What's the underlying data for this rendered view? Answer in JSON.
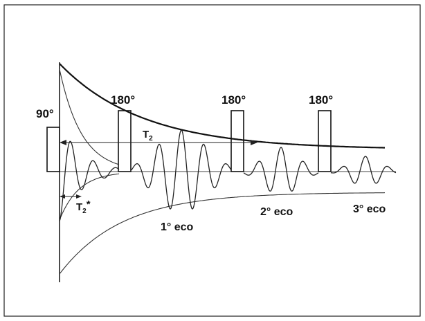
{
  "pulses": {
    "p90": "90°",
    "p180_1": "180°",
    "p180_2": "180°",
    "p180_3": "180°"
  },
  "labels": {
    "t2": "T",
    "t2_sub": "2",
    "t2star": "T",
    "t2star_sub": "2",
    "t2star_mark": "*"
  },
  "echoes": {
    "echo1": "1° eco",
    "echo2": "2° eco",
    "echo3": "3° eco"
  }
}
